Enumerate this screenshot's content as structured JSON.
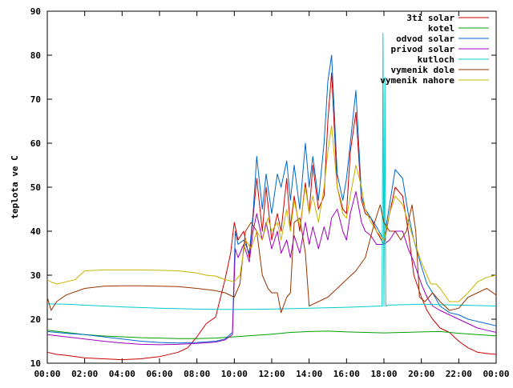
{
  "chart_data": {
    "type": "line",
    "title": "",
    "xlabel": "",
    "ylabel": "teplota ve C",
    "xlim": [
      0,
      24
    ],
    "ylim": [
      10,
      90
    ],
    "grid": false,
    "legend_position": "top-right",
    "x_ticks": [
      "00:00",
      "02:00",
      "04:00",
      "06:00",
      "08:00",
      "10:00",
      "12:00",
      "14:00",
      "16:00",
      "18:00",
      "20:00",
      "22:00",
      "00:00"
    ],
    "y_ticks": [
      "10",
      "20",
      "30",
      "40",
      "50",
      "60",
      "70",
      "80",
      "90"
    ],
    "series": [
      {
        "name": "3ti solar",
        "color": "#cc0000",
        "x": [
          0,
          0.5,
          1,
          2,
          3,
          4,
          5,
          6,
          7,
          7.5,
          8,
          8.5,
          9,
          9.5,
          9.8,
          10,
          10.2,
          10.5,
          10.8,
          11,
          11.2,
          11.5,
          11.7,
          12,
          12.3,
          12.5,
          12.8,
          13,
          13.2,
          13.5,
          13.8,
          14,
          14.2,
          14.5,
          14.8,
          15,
          15.2,
          15.5,
          15.8,
          16,
          16.2,
          16.5,
          16.8,
          17,
          17.3,
          17.6,
          18,
          18.3,
          18.6,
          19,
          19.3,
          19.6,
          20,
          20.3,
          20.6,
          21,
          21.5,
          22,
          22.5,
          23,
          23.5,
          24
        ],
        "y": [
          12.5,
          12,
          11.8,
          11.2,
          11,
          10.8,
          11,
          11.5,
          12.5,
          13.5,
          16,
          19,
          20.5,
          29,
          35,
          42,
          38,
          40,
          34,
          43,
          52,
          40,
          50,
          38,
          44,
          40,
          52,
          41,
          48,
          40,
          51,
          44,
          55,
          45,
          48,
          65,
          76,
          50,
          45,
          44,
          58,
          67,
          47,
          44,
          43,
          40,
          37,
          44,
          50,
          48,
          40,
          30,
          25,
          22,
          20,
          18,
          17,
          15,
          13.5,
          12.5,
          12.2,
          12
        ]
      },
      {
        "name": "kotel",
        "color": "#00a000",
        "x": [
          0,
          1,
          2,
          3,
          4,
          5,
          6,
          7,
          8,
          9,
          10,
          11,
          12,
          13,
          14,
          15,
          16,
          17,
          18,
          19,
          20,
          21,
          22,
          23,
          24
        ],
        "y": [
          17.5,
          17,
          16.5,
          16.2,
          16,
          15.8,
          15.7,
          15.6,
          15.6,
          15.7,
          16,
          16.3,
          16.6,
          17,
          17.2,
          17.3,
          17.1,
          17,
          16.9,
          17,
          17.1,
          17.2,
          16.8,
          16.5,
          16.2
        ]
      },
      {
        "name": "odvod solar",
        "color": "#0066cc",
        "x": [
          0,
          1,
          2,
          3,
          4,
          5,
          6,
          7,
          8,
          9,
          9.5,
          9.9,
          10.05,
          10.2,
          10.5,
          10.8,
          11,
          11.2,
          11.5,
          11.7,
          12,
          12.3,
          12.5,
          12.8,
          13,
          13.2,
          13.5,
          13.8,
          14,
          14.2,
          14.5,
          14.8,
          15,
          15.2,
          15.5,
          15.8,
          16,
          16.2,
          16.5,
          16.8,
          17,
          17.3,
          17.6,
          18,
          18.3,
          18.6,
          19,
          19.3,
          19.6,
          20,
          20.3,
          20.6,
          21,
          21.5,
          22,
          22.5,
          23,
          23.5,
          24
        ],
        "y": [
          17.2,
          16.8,
          16.5,
          16,
          15.5,
          15,
          14.7,
          14.6,
          14.7,
          15,
          15.5,
          17,
          40,
          37,
          38,
          35,
          44,
          57,
          45,
          53,
          44,
          53,
          50,
          56,
          47,
          55,
          45,
          60,
          50,
          57,
          47,
          60,
          74,
          80,
          53,
          47,
          52,
          60,
          72,
          48,
          45,
          43,
          41,
          38,
          46,
          54,
          52,
          44,
          38,
          32,
          28,
          26,
          23,
          21.5,
          21,
          20,
          19.5,
          19,
          18.5
        ]
      },
      {
        "name": "privod solar",
        "color": "#a000c0",
        "x": [
          0,
          1,
          2,
          3,
          4,
          5,
          6,
          7,
          8,
          9,
          9.5,
          9.9,
          10.05,
          10.2,
          10.5,
          10.8,
          11,
          11.2,
          11.5,
          11.7,
          12,
          12.3,
          12.5,
          12.8,
          13,
          13.2,
          13.5,
          13.8,
          14,
          14.2,
          14.5,
          14.8,
          15,
          15.2,
          15.5,
          15.8,
          16,
          16.2,
          16.5,
          16.8,
          17,
          17.3,
          17.6,
          18,
          18.3,
          18.6,
          19,
          19.3,
          19.6,
          20,
          20.3,
          20.6,
          21,
          21.5,
          22,
          22.5,
          23,
          23.5,
          24
        ],
        "y": [
          16.5,
          16,
          15.5,
          15,
          14.6,
          14.3,
          14.2,
          14.3,
          14.5,
          14.8,
          15.3,
          16.5,
          36,
          34,
          37,
          33,
          40,
          44,
          38,
          42,
          36,
          40,
          35,
          38,
          34,
          39,
          35,
          42,
          37,
          41,
          36,
          41,
          38,
          43,
          45,
          40,
          38,
          44,
          49,
          42,
          40,
          39,
          37,
          37,
          38,
          40,
          40,
          36,
          33,
          28,
          25,
          23,
          22,
          21,
          20,
          19,
          18,
          17.5,
          17
        ]
      },
      {
        "name": "kutloch",
        "color": "#00cccc",
        "x": [
          0,
          1,
          2,
          4,
          6,
          8,
          10,
          12,
          14,
          16,
          17.9,
          17.95,
          18.0,
          18.05,
          18.1,
          18.15,
          18.2,
          19,
          20,
          22,
          24
        ],
        "y": [
          23.5,
          23.4,
          23.2,
          22.8,
          22.5,
          22.3,
          22.2,
          22.3,
          22.5,
          22.7,
          23,
          85,
          23,
          75,
          23,
          23,
          23.2,
          23.3,
          23.4,
          23.2,
          23
        ]
      },
      {
        "name": "vymenik dole",
        "color": "#993300",
        "x": [
          0,
          0.2,
          0.5,
          1,
          2,
          3,
          4,
          5,
          6,
          7,
          8,
          9,
          9.5,
          10,
          10.3,
          10.6,
          10.9,
          11.2,
          11.5,
          11.8,
          12,
          12.3,
          12.5,
          12.8,
          13,
          13.2,
          13.5,
          13.8,
          14,
          14.5,
          15,
          15.5,
          16,
          16.5,
          17,
          17.5,
          17.8,
          18,
          18.3,
          18.6,
          18.9,
          19.2,
          19.5,
          19.7,
          19.9,
          20.2,
          20.6,
          21,
          21.5,
          22,
          22.5,
          23,
          23.5,
          24
        ],
        "y": [
          25,
          22,
          24,
          25.5,
          27,
          27.5,
          27.6,
          27.6,
          27.5,
          27.4,
          27,
          26.5,
          26,
          25,
          28,
          40,
          42,
          40,
          30,
          27,
          26,
          26,
          21.5,
          25,
          26,
          42,
          43,
          35,
          23,
          24,
          25,
          27,
          29,
          31,
          34,
          42,
          46,
          42,
          40,
          40,
          38,
          40,
          46,
          40,
          25,
          24,
          26,
          24,
          22,
          22.5,
          25,
          26,
          27,
          25.5
        ]
      },
      {
        "name": "vymenik nahore",
        "color": "#c8b400",
        "x": [
          0,
          0.2,
          0.5,
          1,
          1.5,
          2,
          3,
          4,
          5,
          6,
          7,
          8,
          8.5,
          9,
          9.5,
          10,
          10.3,
          10.6,
          10.9,
          11.2,
          11.5,
          11.8,
          12,
          12.3,
          12.5,
          12.8,
          13,
          13.2,
          13.5,
          13.8,
          14,
          14.2,
          14.5,
          14.8,
          15,
          15.2,
          15.5,
          15.8,
          16,
          16.2,
          16.5,
          16.8,
          17,
          17.3,
          17.6,
          18,
          18.3,
          18.6,
          19,
          19.3,
          19.6,
          20,
          20.3,
          20.5,
          20.8,
          21,
          21.5,
          22,
          22.5,
          23,
          23.5,
          24
        ],
        "y": [
          29,
          28.5,
          28,
          28.5,
          29,
          31,
          31.2,
          31.2,
          31.2,
          31.1,
          31,
          30.5,
          30,
          29.8,
          29,
          28.5,
          30,
          38,
          36,
          40,
          38,
          43,
          40,
          42,
          38,
          45,
          40,
          47,
          41,
          50,
          44,
          48,
          42,
          50,
          58,
          64,
          50,
          44,
          43,
          48,
          55,
          50,
          45,
          42,
          40,
          38,
          44,
          48,
          46,
          42,
          38,
          33,
          30,
          28,
          28,
          27,
          24,
          24,
          26,
          28.5,
          29.5,
          30
        ]
      }
    ]
  }
}
